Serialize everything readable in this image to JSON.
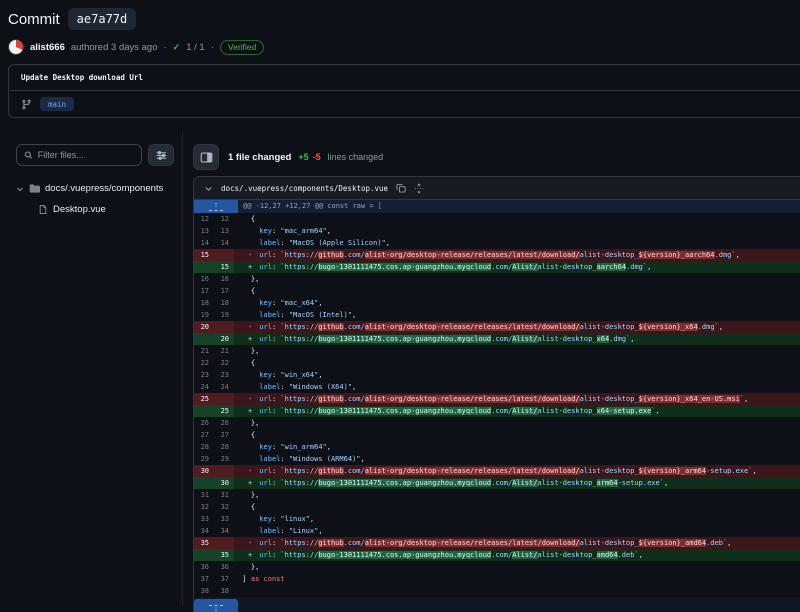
{
  "header": {
    "title_label": "Commit",
    "hash": "ae7a77d",
    "author": "alist666",
    "authored_text": "authored 3 days ago",
    "separator": "·",
    "checks_status": "1 / 1",
    "check_glyph": "✓",
    "verified_label": "Verified",
    "message": "Update Desktop download Url",
    "branch": "main"
  },
  "sidebar": {
    "filter_placeholder": "Filter files...",
    "tree": {
      "folder_label": "docs/.vuepress/components",
      "file_label": "Desktop.vue"
    }
  },
  "main": {
    "files_changed": "1 file changed",
    "additions": "+5",
    "deletions": "-5",
    "lines_changed_label": "lines changed",
    "file_path": "docs/.vuepress/components/Desktop.vue"
  },
  "colors": {
    "addition_green": "#3fb950",
    "deletion_red": "#f85149",
    "verified_green": "#3fb950",
    "branch_blue": "#7aa4e8",
    "fold_button_blue": "#24579f"
  },
  "diff": {
    "hunk_text": "@@ -12,27 +12,27 @@ const raw = [",
    "expand_up": "↑",
    "expand_down": "↓",
    "markers": {
      "del": "-",
      "add": "+"
    },
    "rows": [
      {
        "o": "12",
        "n": "12",
        "t": "ctx",
        "s": [
          [
            "    {",
            "pl"
          ]
        ]
      },
      {
        "o": "13",
        "n": "13",
        "t": "ctx",
        "s": [
          [
            "      ",
            "pl"
          ],
          [
            "key",
            "pr"
          ],
          [
            ": ",
            "pl"
          ],
          [
            "\"mac_arm64\"",
            "st"
          ],
          [
            ",",
            "pl"
          ]
        ]
      },
      {
        "o": "14",
        "n": "14",
        "t": "ctx",
        "s": [
          [
            "      ",
            "pl"
          ],
          [
            "label",
            "pr"
          ],
          [
            ": ",
            "pl"
          ],
          [
            "\"MacOS (Apple Silicon)\"",
            "st"
          ],
          [
            ",",
            "pl"
          ]
        ]
      },
      {
        "o": "15",
        "n": "",
        "t": "del",
        "s": [
          [
            "      ",
            "pl"
          ],
          [
            "url",
            "pr"
          ],
          [
            ": ",
            "pl"
          ],
          [
            "`https://",
            "st"
          ],
          [
            "github",
            "sh"
          ],
          [
            ".com/",
            "st"
          ],
          [
            "alist-org/desktop-release/releases/latest/download/",
            "sh"
          ],
          [
            "alist-desktop_",
            "st"
          ],
          [
            "${version}_aarch64",
            "sh"
          ],
          [
            ".dmg`",
            "st"
          ],
          [
            ",",
            "pl"
          ]
        ]
      },
      {
        "o": "",
        "n": "15",
        "t": "add",
        "s": [
          [
            "      ",
            "pl"
          ],
          [
            "url",
            "pr"
          ],
          [
            ": ",
            "pl"
          ],
          [
            "`https://",
            "st"
          ],
          [
            "bugo-1301111475.cos.ap-guangzhou.myqcloud",
            "sh"
          ],
          [
            ".com/",
            "st"
          ],
          [
            "Alist/",
            "sh"
          ],
          [
            "alist-desktop_",
            "st"
          ],
          [
            "aarch64",
            "sh"
          ],
          [
            ".dmg`",
            "st"
          ],
          [
            ",",
            "pl"
          ]
        ]
      },
      {
        "o": "16",
        "n": "16",
        "t": "ctx",
        "s": [
          [
            "    },",
            "pl"
          ]
        ]
      },
      {
        "o": "17",
        "n": "17",
        "t": "ctx",
        "s": [
          [
            "    {",
            "pl"
          ]
        ]
      },
      {
        "o": "18",
        "n": "18",
        "t": "ctx",
        "s": [
          [
            "      ",
            "pl"
          ],
          [
            "key",
            "pr"
          ],
          [
            ": ",
            "pl"
          ],
          [
            "\"mac_x64\"",
            "st"
          ],
          [
            ",",
            "pl"
          ]
        ]
      },
      {
        "o": "19",
        "n": "19",
        "t": "ctx",
        "s": [
          [
            "      ",
            "pl"
          ],
          [
            "label",
            "pr"
          ],
          [
            ": ",
            "pl"
          ],
          [
            "\"MacOS (Intel)\"",
            "st"
          ],
          [
            ",",
            "pl"
          ]
        ]
      },
      {
        "o": "20",
        "n": "",
        "t": "del",
        "s": [
          [
            "      ",
            "pl"
          ],
          [
            "url",
            "pr"
          ],
          [
            ": ",
            "pl"
          ],
          [
            "`https://",
            "st"
          ],
          [
            "github",
            "sh"
          ],
          [
            ".com/",
            "st"
          ],
          [
            "alist-org/desktop-release/releases/latest/download/",
            "sh"
          ],
          [
            "alist-desktop_",
            "st"
          ],
          [
            "${version}_x64",
            "sh"
          ],
          [
            ".dmg`",
            "st"
          ],
          [
            ",",
            "pl"
          ]
        ]
      },
      {
        "o": "",
        "n": "20",
        "t": "add",
        "s": [
          [
            "      ",
            "pl"
          ],
          [
            "url",
            "pr"
          ],
          [
            ": ",
            "pl"
          ],
          [
            "`https://",
            "st"
          ],
          [
            "bugo-1301111475.cos.ap-guangzhou.myqcloud",
            "sh"
          ],
          [
            ".com/",
            "st"
          ],
          [
            "Alist/",
            "sh"
          ],
          [
            "alist-desktop_",
            "st"
          ],
          [
            "x64",
            "sh"
          ],
          [
            ".dmg`",
            "st"
          ],
          [
            ",",
            "pl"
          ]
        ]
      },
      {
        "o": "21",
        "n": "21",
        "t": "ctx",
        "s": [
          [
            "    },",
            "pl"
          ]
        ]
      },
      {
        "o": "22",
        "n": "22",
        "t": "ctx",
        "s": [
          [
            "    {",
            "pl"
          ]
        ]
      },
      {
        "o": "23",
        "n": "23",
        "t": "ctx",
        "s": [
          [
            "      ",
            "pl"
          ],
          [
            "key",
            "pr"
          ],
          [
            ": ",
            "pl"
          ],
          [
            "\"win_x64\"",
            "st"
          ],
          [
            ",",
            "pl"
          ]
        ]
      },
      {
        "o": "24",
        "n": "24",
        "t": "ctx",
        "s": [
          [
            "      ",
            "pl"
          ],
          [
            "label",
            "pr"
          ],
          [
            ": ",
            "pl"
          ],
          [
            "\"Windows (X64)\"",
            "st"
          ],
          [
            ",",
            "pl"
          ]
        ]
      },
      {
        "o": "25",
        "n": "",
        "t": "del",
        "s": [
          [
            "      ",
            "pl"
          ],
          [
            "url",
            "pr"
          ],
          [
            ": ",
            "pl"
          ],
          [
            "`https://",
            "st"
          ],
          [
            "github",
            "sh"
          ],
          [
            ".com/",
            "st"
          ],
          [
            "alist-org/desktop-release/releases/latest/download/",
            "sh"
          ],
          [
            "alist-desktop_",
            "st"
          ],
          [
            "${version}_x64_en-US.msi",
            "sh"
          ],
          [
            "`",
            "st"
          ],
          [
            ",",
            "pl"
          ]
        ]
      },
      {
        "o": "",
        "n": "25",
        "t": "add",
        "s": [
          [
            "      ",
            "pl"
          ],
          [
            "url",
            "pr"
          ],
          [
            ": ",
            "pl"
          ],
          [
            "`https://",
            "st"
          ],
          [
            "bugo-1301111475.cos.ap-guangzhou.myqcloud",
            "sh"
          ],
          [
            ".com/",
            "st"
          ],
          [
            "Alist/",
            "sh"
          ],
          [
            "alist-desktop_",
            "st"
          ],
          [
            "x64-setup.exe",
            "sh"
          ],
          [
            "`",
            "st"
          ],
          [
            ",",
            "pl"
          ]
        ]
      },
      {
        "o": "26",
        "n": "26",
        "t": "ctx",
        "s": [
          [
            "    },",
            "pl"
          ]
        ]
      },
      {
        "o": "27",
        "n": "27",
        "t": "ctx",
        "s": [
          [
            "    {",
            "pl"
          ]
        ]
      },
      {
        "o": "28",
        "n": "28",
        "t": "ctx",
        "s": [
          [
            "      ",
            "pl"
          ],
          [
            "key",
            "pr"
          ],
          [
            ": ",
            "pl"
          ],
          [
            "\"win_arm64\"",
            "st"
          ],
          [
            ",",
            "pl"
          ]
        ]
      },
      {
        "o": "29",
        "n": "29",
        "t": "ctx",
        "s": [
          [
            "      ",
            "pl"
          ],
          [
            "label",
            "pr"
          ],
          [
            ": ",
            "pl"
          ],
          [
            "\"Windows (ARM64)\"",
            "st"
          ],
          [
            ",",
            "pl"
          ]
        ]
      },
      {
        "o": "30",
        "n": "",
        "t": "del",
        "s": [
          [
            "      ",
            "pl"
          ],
          [
            "url",
            "pr"
          ],
          [
            ": ",
            "pl"
          ],
          [
            "`https://",
            "st"
          ],
          [
            "github",
            "sh"
          ],
          [
            ".com/",
            "st"
          ],
          [
            "alist-org/desktop-release/releases/latest/download/",
            "sh"
          ],
          [
            "alist-desktop_",
            "st"
          ],
          [
            "${version}_arm64",
            "sh"
          ],
          [
            "-setup.exe`",
            "st"
          ],
          [
            ",",
            "pl"
          ]
        ]
      },
      {
        "o": "",
        "n": "30",
        "t": "add",
        "s": [
          [
            "      ",
            "pl"
          ],
          [
            "url",
            "pr"
          ],
          [
            ": ",
            "pl"
          ],
          [
            "`https://",
            "st"
          ],
          [
            "bugo-1301111475.cos.ap-guangzhou.myqcloud",
            "sh"
          ],
          [
            ".com/",
            "st"
          ],
          [
            "Alist/",
            "sh"
          ],
          [
            "alist-desktop_",
            "st"
          ],
          [
            "arm64",
            "sh"
          ],
          [
            "-setup.exe`",
            "st"
          ],
          [
            ",",
            "pl"
          ]
        ]
      },
      {
        "o": "31",
        "n": "31",
        "t": "ctx",
        "s": [
          [
            "    },",
            "pl"
          ]
        ]
      },
      {
        "o": "32",
        "n": "32",
        "t": "ctx",
        "s": [
          [
            "    {",
            "pl"
          ]
        ]
      },
      {
        "o": "33",
        "n": "33",
        "t": "ctx",
        "s": [
          [
            "      ",
            "pl"
          ],
          [
            "key",
            "pr"
          ],
          [
            ": ",
            "pl"
          ],
          [
            "\"linux\"",
            "st"
          ],
          [
            ",",
            "pl"
          ]
        ]
      },
      {
        "o": "34",
        "n": "34",
        "t": "ctx",
        "s": [
          [
            "      ",
            "pl"
          ],
          [
            "label",
            "pr"
          ],
          [
            ": ",
            "pl"
          ],
          [
            "\"Linux\"",
            "st"
          ],
          [
            ",",
            "pl"
          ]
        ]
      },
      {
        "o": "35",
        "n": "",
        "t": "del",
        "s": [
          [
            "      ",
            "pl"
          ],
          [
            "url",
            "pr"
          ],
          [
            ": ",
            "pl"
          ],
          [
            "`https://",
            "st"
          ],
          [
            "github",
            "sh"
          ],
          [
            ".com/",
            "st"
          ],
          [
            "alist-org/desktop-release/releases/latest/download/",
            "sh"
          ],
          [
            "alist-desktop_",
            "st"
          ],
          [
            "${version}_amd64",
            "sh"
          ],
          [
            ".deb`",
            "st"
          ],
          [
            ",",
            "pl"
          ]
        ]
      },
      {
        "o": "",
        "n": "35",
        "t": "add",
        "s": [
          [
            "      ",
            "pl"
          ],
          [
            "url",
            "pr"
          ],
          [
            ": ",
            "pl"
          ],
          [
            "`https://",
            "st"
          ],
          [
            "bugo-1301111475.cos.ap-guangzhou.myqcloud",
            "sh"
          ],
          [
            ".com/",
            "st"
          ],
          [
            "Alist/",
            "sh"
          ],
          [
            "alist-desktop_",
            "st"
          ],
          [
            "amd64",
            "sh"
          ],
          [
            ".deb`",
            "st"
          ],
          [
            ",",
            "pl"
          ]
        ]
      },
      {
        "o": "36",
        "n": "36",
        "t": "ctx",
        "s": [
          [
            "    },",
            "pl"
          ]
        ]
      },
      {
        "o": "37",
        "n": "37",
        "t": "ctx",
        "s": [
          [
            "  ] ",
            "pl"
          ],
          [
            "as",
            "kw"
          ],
          [
            " ",
            "pl"
          ],
          [
            "const",
            "kw"
          ]
        ]
      },
      {
        "o": "38",
        "n": "38",
        "t": "ctx",
        "s": [
          [
            "",
            "pl"
          ]
        ]
      }
    ]
  }
}
